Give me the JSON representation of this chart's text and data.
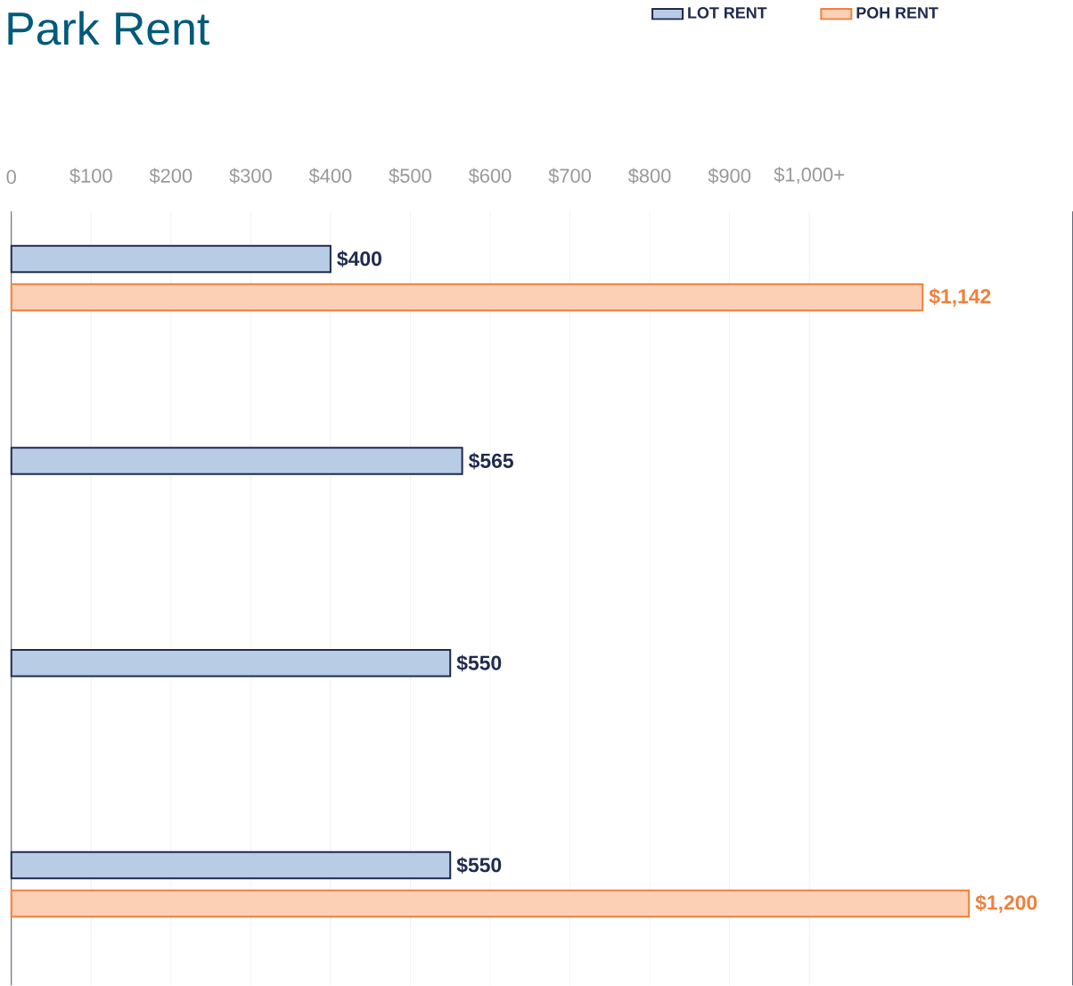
{
  "chart_data": {
    "type": "bar",
    "orientation": "horizontal",
    "title": "Park Rent",
    "categories": [
      null,
      null,
      null,
      null
    ],
    "series": [
      {
        "name": "LOT RENT",
        "color": "#b8cce6",
        "values": [
          400,
          565,
          550,
          550
        ],
        "value_labels": [
          "$400",
          "$565",
          "$550",
          "$550"
        ]
      },
      {
        "name": "POH RENT",
        "color": "#fbd0b5",
        "values": [
          1142,
          null,
          null,
          1200
        ],
        "value_labels": [
          "$1,142",
          null,
          null,
          "$1,200"
        ]
      }
    ],
    "xlim": [
      0,
      1330
    ],
    "xticks": [
      0,
      {
        "value": 100,
        "label": "$100"
      },
      {
        "value": 200,
        "label": "$200"
      },
      {
        "value": 300,
        "label": "$300"
      },
      {
        "value": 400,
        "label": "$400"
      },
      {
        "value": 500,
        "label": "$500"
      },
      {
        "value": 600,
        "label": "$600"
      },
      {
        "value": 700,
        "label": "$700"
      },
      {
        "value": 800,
        "label": "$800"
      },
      {
        "value": 900,
        "label": "$900"
      },
      {
        "value": 1000,
        "label": "$1,000+"
      }
    ],
    "grid": "x",
    "legend": "top right"
  }
}
